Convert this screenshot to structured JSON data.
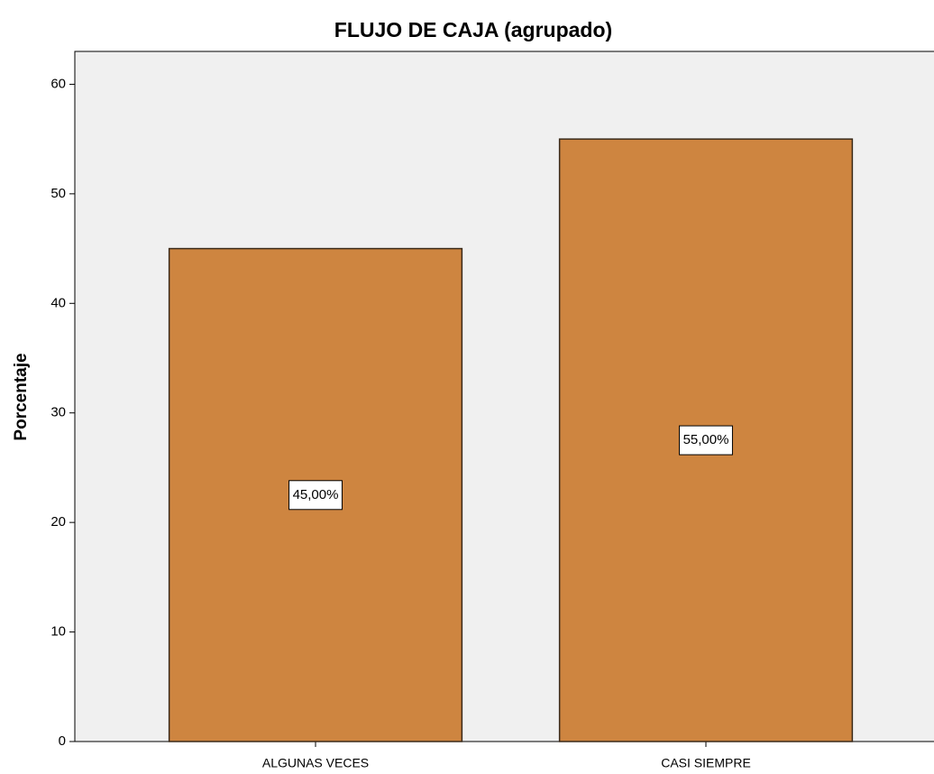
{
  "chart_data": {
    "type": "bar",
    "title": "FLUJO DE CAJA (agrupado)",
    "y_label": "Porcentaje",
    "categories": [
      "ALGUNAS VECES",
      "CASI SIEMPRE"
    ],
    "values": [
      45,
      55
    ],
    "value_labels": [
      "45,00%",
      "55,00%"
    ],
    "color": "#ce8540",
    "ylim": [
      0,
      63
    ],
    "yticks": [
      0,
      10,
      20,
      30,
      40,
      50,
      60
    ],
    "grid": false
  }
}
